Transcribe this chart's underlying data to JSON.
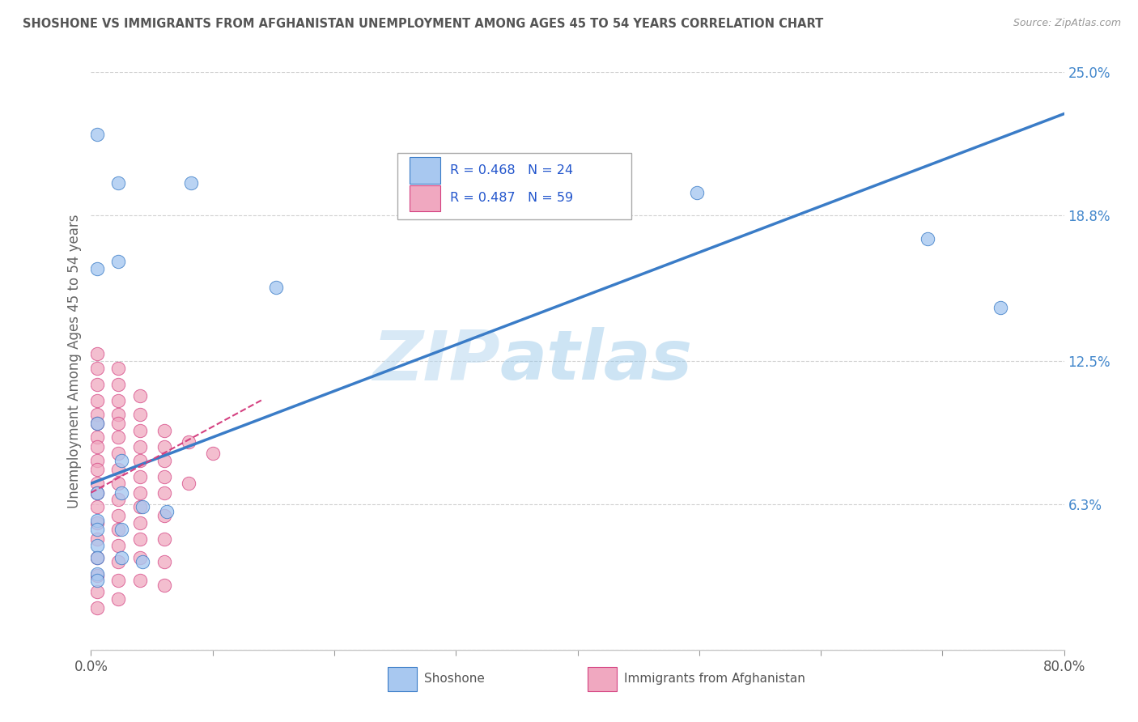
{
  "title": "SHOSHONE VS IMMIGRANTS FROM AFGHANISTAN UNEMPLOYMENT AMONG AGES 45 TO 54 YEARS CORRELATION CHART",
  "source": "Source: ZipAtlas.com",
  "ylabel": "Unemployment Among Ages 45 to 54 years",
  "xmin": 0.0,
  "xmax": 0.8,
  "ymin": 0.0,
  "ymax": 0.25,
  "yticks": [
    0.0,
    0.063,
    0.125,
    0.188,
    0.25
  ],
  "ytick_labels": [
    "",
    "6.3%",
    "12.5%",
    "18.8%",
    "25.0%"
  ],
  "legend_r1": "R = 0.468",
  "legend_n1": "N = 24",
  "legend_r2": "R = 0.487",
  "legend_n2": "N = 59",
  "color_shoshone": "#a8c8f0",
  "color_afghanistan": "#f0a8c0",
  "color_line_shoshone": "#3a7cc7",
  "color_line_afghanistan": "#d44080",
  "watermark_zip": "ZIP",
  "watermark_atlas": "atlas",
  "shoshone_points": [
    [
      0.005,
      0.223
    ],
    [
      0.022,
      0.202
    ],
    [
      0.082,
      0.202
    ],
    [
      0.022,
      0.168
    ],
    [
      0.005,
      0.165
    ],
    [
      0.152,
      0.157
    ],
    [
      0.005,
      0.098
    ],
    [
      0.025,
      0.082
    ],
    [
      0.005,
      0.068
    ],
    [
      0.025,
      0.068
    ],
    [
      0.042,
      0.062
    ],
    [
      0.062,
      0.06
    ],
    [
      0.005,
      0.056
    ],
    [
      0.005,
      0.052
    ],
    [
      0.025,
      0.052
    ],
    [
      0.005,
      0.045
    ],
    [
      0.005,
      0.04
    ],
    [
      0.025,
      0.04
    ],
    [
      0.042,
      0.038
    ],
    [
      0.005,
      0.033
    ],
    [
      0.005,
      0.03
    ],
    [
      0.498,
      0.198
    ],
    [
      0.688,
      0.178
    ],
    [
      0.748,
      0.148
    ]
  ],
  "afghanistan_points": [
    [
      0.005,
      0.128
    ],
    [
      0.005,
      0.122
    ],
    [
      0.005,
      0.115
    ],
    [
      0.005,
      0.108
    ],
    [
      0.005,
      0.102
    ],
    [
      0.005,
      0.098
    ],
    [
      0.005,
      0.092
    ],
    [
      0.005,
      0.088
    ],
    [
      0.005,
      0.082
    ],
    [
      0.005,
      0.078
    ],
    [
      0.005,
      0.072
    ],
    [
      0.005,
      0.068
    ],
    [
      0.005,
      0.062
    ],
    [
      0.005,
      0.055
    ],
    [
      0.005,
      0.048
    ],
    [
      0.005,
      0.04
    ],
    [
      0.005,
      0.032
    ],
    [
      0.005,
      0.025
    ],
    [
      0.005,
      0.018
    ],
    [
      0.022,
      0.122
    ],
    [
      0.022,
      0.115
    ],
    [
      0.022,
      0.108
    ],
    [
      0.022,
      0.102
    ],
    [
      0.022,
      0.098
    ],
    [
      0.022,
      0.092
    ],
    [
      0.022,
      0.085
    ],
    [
      0.022,
      0.078
    ],
    [
      0.022,
      0.072
    ],
    [
      0.022,
      0.065
    ],
    [
      0.022,
      0.058
    ],
    [
      0.022,
      0.052
    ],
    [
      0.022,
      0.045
    ],
    [
      0.022,
      0.038
    ],
    [
      0.022,
      0.03
    ],
    [
      0.022,
      0.022
    ],
    [
      0.04,
      0.11
    ],
    [
      0.04,
      0.102
    ],
    [
      0.04,
      0.095
    ],
    [
      0.04,
      0.088
    ],
    [
      0.04,
      0.082
    ],
    [
      0.04,
      0.075
    ],
    [
      0.04,
      0.068
    ],
    [
      0.04,
      0.062
    ],
    [
      0.04,
      0.055
    ],
    [
      0.04,
      0.048
    ],
    [
      0.04,
      0.04
    ],
    [
      0.04,
      0.03
    ],
    [
      0.06,
      0.095
    ],
    [
      0.06,
      0.088
    ],
    [
      0.06,
      0.082
    ],
    [
      0.06,
      0.075
    ],
    [
      0.06,
      0.068
    ],
    [
      0.06,
      0.058
    ],
    [
      0.06,
      0.048
    ],
    [
      0.06,
      0.038
    ],
    [
      0.06,
      0.028
    ],
    [
      0.08,
      0.09
    ],
    [
      0.08,
      0.072
    ],
    [
      0.1,
      0.085
    ]
  ],
  "shoshone_line": [
    [
      0.0,
      0.072
    ],
    [
      0.8,
      0.232
    ]
  ],
  "afghanistan_line": [
    [
      0.0,
      0.068
    ],
    [
      0.14,
      0.108
    ]
  ]
}
